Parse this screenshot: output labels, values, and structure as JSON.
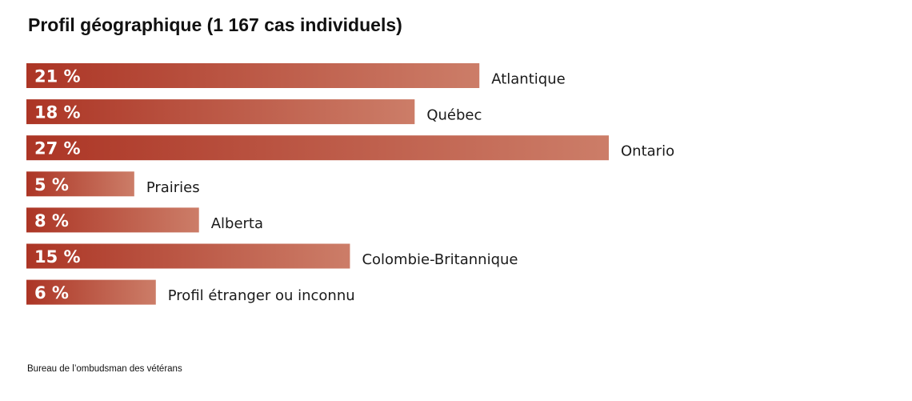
{
  "title": "Profil géographique (1 167 cas individuels)",
  "footer": "Bureau de l’ombudsman des vétérans",
  "colors": {
    "bar_start": "#ac3525",
    "bar_end": "#cc7d68",
    "value_text": "#ffffff",
    "category_text": "#1a1a1a"
  },
  "chart_data": {
    "type": "bar",
    "orientation": "horizontal",
    "categories": [
      "Atlantique",
      "Québec",
      "Ontario",
      "Prairies",
      "Alberta",
      "Colombie-Britannique",
      "Profil étranger ou inconnu"
    ],
    "values": [
      21,
      18,
      27,
      5,
      8,
      15,
      6
    ],
    "value_labels": [
      "21 %",
      "18 %",
      "27 %",
      "5 %",
      "8 %",
      "15 %",
      "6 %"
    ],
    "unit": "%",
    "xlim": [
      0,
      27
    ],
    "grid": false,
    "legend": "none"
  }
}
